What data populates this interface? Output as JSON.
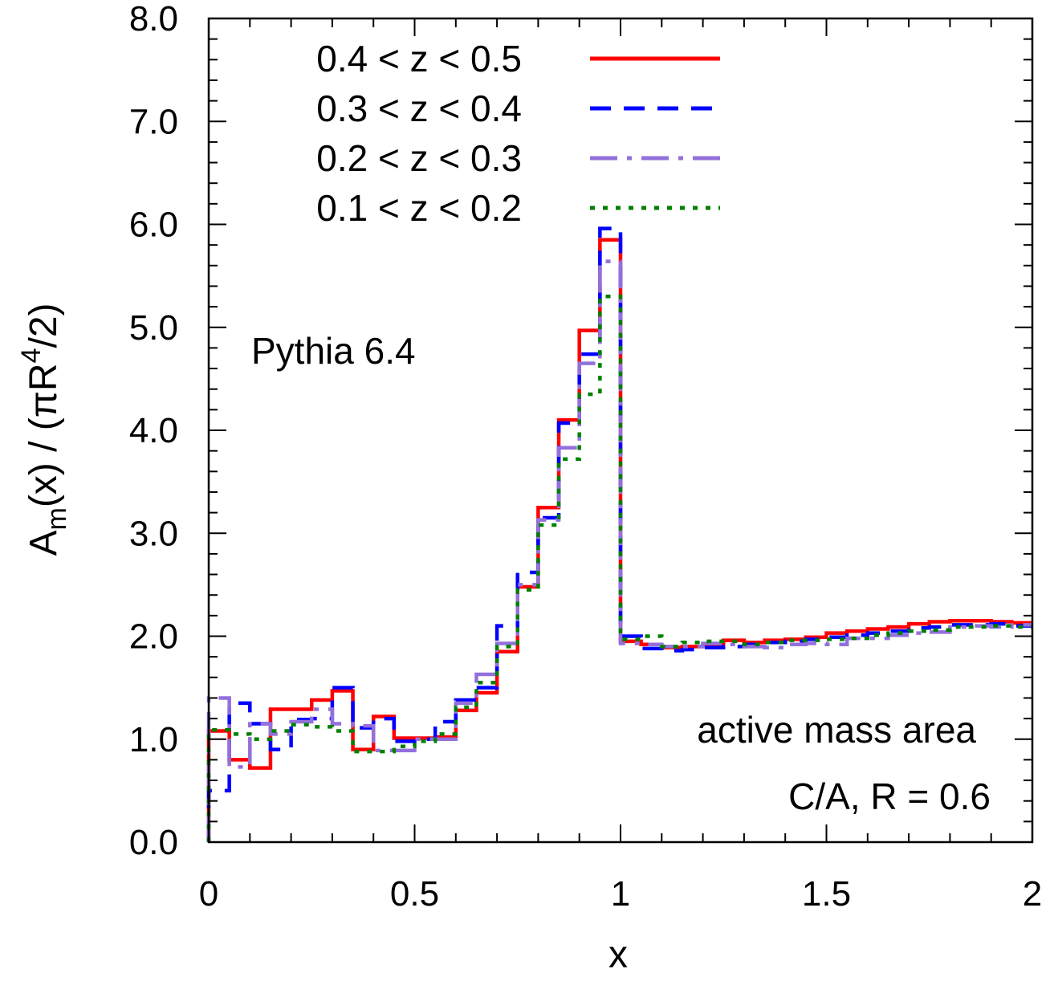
{
  "chart_data": {
    "type": "line",
    "xlabel": "x",
    "ylabel": {
      "parts": [
        "A",
        "m",
        "(x) / (πR",
        "4",
        "/2)"
      ]
    },
    "xlim": [
      0,
      2
    ],
    "ylim": [
      0,
      8
    ],
    "xticks": [
      {
        "value": 0,
        "label": "0"
      },
      {
        "value": 0.5,
        "label": "0.5"
      },
      {
        "value": 1,
        "label": "1"
      },
      {
        "value": 1.5,
        "label": "1.5"
      },
      {
        "value": 2,
        "label": "2"
      }
    ],
    "yticks": [
      {
        "value": 0,
        "label": "0.0"
      },
      {
        "value": 1,
        "label": "1.0"
      },
      {
        "value": 2,
        "label": "2.0"
      },
      {
        "value": 3,
        "label": "3.0"
      },
      {
        "value": 4,
        "label": "4.0"
      },
      {
        "value": 5,
        "label": "5.0"
      },
      {
        "value": 6,
        "label": "6.0"
      },
      {
        "value": 7,
        "label": "7.0"
      },
      {
        "value": 8,
        "label": "8.0"
      }
    ],
    "grid": false,
    "legend_position": "top-left",
    "annotations": {
      "generator": "Pythia 6.4",
      "line1": "active mass area",
      "line2": "C/A, R = 0.6"
    },
    "bin_edges": [
      0,
      0.05,
      0.1,
      0.15,
      0.2,
      0.25,
      0.3,
      0.35,
      0.4,
      0.45,
      0.5,
      0.55,
      0.6,
      0.65,
      0.7,
      0.75,
      0.8,
      0.85,
      0.9,
      0.95,
      1.0,
      1.05,
      1.1,
      1.15,
      1.2,
      1.25,
      1.3,
      1.35,
      1.4,
      1.45,
      1.5,
      1.55,
      1.6,
      1.65,
      1.7,
      1.75,
      1.8,
      1.85,
      1.9,
      1.95,
      2.0
    ],
    "series": [
      {
        "name": "0.4 < z < 0.5",
        "color": "#ff0000",
        "dash": "solid",
        "values": [
          1.08,
          0.8,
          0.72,
          1.29,
          1.29,
          1.38,
          1.47,
          0.9,
          1.22,
          1.01,
          1.01,
          1.02,
          1.28,
          1.45,
          1.85,
          2.48,
          3.25,
          4.1,
          4.97,
          5.85,
          1.95,
          1.92,
          1.89,
          1.9,
          1.92,
          1.96,
          1.94,
          1.96,
          1.97,
          1.99,
          2.03,
          2.05,
          2.07,
          2.09,
          2.12,
          2.14,
          2.15,
          2.15,
          2.14,
          2.13
        ]
      },
      {
        "name": "0.3 < z < 0.4",
        "color": "#0000ff",
        "dash": "long-dash",
        "values": [
          0.5,
          1.35,
          1.15,
          0.9,
          1.19,
          1.2,
          1.5,
          1.11,
          1.2,
          0.98,
          1.0,
          1.17,
          1.38,
          1.5,
          2.1,
          2.62,
          3.15,
          4.07,
          4.74,
          5.96,
          2.0,
          1.88,
          1.86,
          1.87,
          1.89,
          1.9,
          1.92,
          1.94,
          1.95,
          1.97,
          1.99,
          2.01,
          2.03,
          2.05,
          2.08,
          2.09,
          2.11,
          2.11,
          2.12,
          2.1
        ]
      },
      {
        "name": "0.2 < z < 0.3",
        "color": "#9370db",
        "dash": "dash-dot",
        "values": [
          1.4,
          0.73,
          1.15,
          1.05,
          1.17,
          1.29,
          1.15,
          1.13,
          0.89,
          0.89,
          1.0,
          1.0,
          1.35,
          1.63,
          1.93,
          2.5,
          3.13,
          3.83,
          4.65,
          5.64,
          1.93,
          1.92,
          1.9,
          1.9,
          1.93,
          1.92,
          1.9,
          1.89,
          1.92,
          1.93,
          1.92,
          1.98,
          1.98,
          2.01,
          2.03,
          2.04,
          2.09,
          2.1,
          2.09,
          2.11
        ]
      },
      {
        "name": "0.1 < z < 0.2",
        "color": "#008000",
        "dash": "dotted",
        "values": [
          1.09,
          1.05,
          1.0,
          1.08,
          1.14,
          1.12,
          1.08,
          0.88,
          0.88,
          0.93,
          0.98,
          1.05,
          1.31,
          1.55,
          1.9,
          2.45,
          3.08,
          3.72,
          4.35,
          5.3,
          1.97,
          2.0,
          1.9,
          1.94,
          1.95,
          1.95,
          1.92,
          1.94,
          1.96,
          1.96,
          1.97,
          1.98,
          2.01,
          2.03,
          2.05,
          2.06,
          2.09,
          2.09,
          2.1,
          2.09
        ]
      }
    ]
  }
}
